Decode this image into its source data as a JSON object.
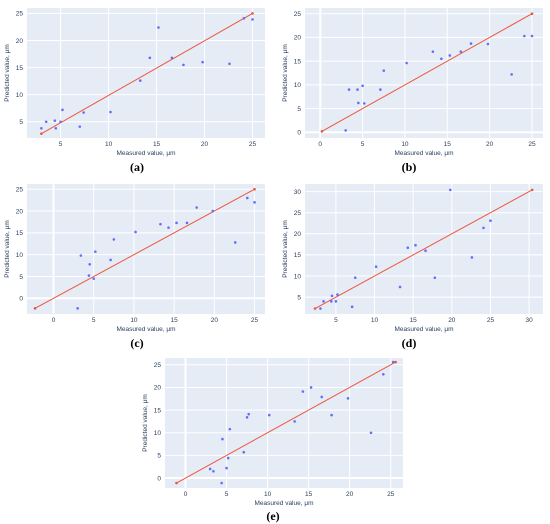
{
  "chart_data": [
    {
      "id": "a",
      "caption": "(a)",
      "type": "scatter",
      "xlabel": "Measured value, μm",
      "ylabel": "Predicted value, μm",
      "xlim": [
        1.5,
        26.3
      ],
      "ylim": [
        2.0,
        26.0
      ],
      "xticks": [
        5,
        10,
        15,
        20,
        25
      ],
      "yticks": [
        5,
        10,
        15,
        20,
        25
      ],
      "points": [
        [
          3,
          3.8
        ],
        [
          3.5,
          5.0
        ],
        [
          4.4,
          5.2
        ],
        [
          4.5,
          3.8
        ],
        [
          5.0,
          5.0
        ],
        [
          5.2,
          7.2
        ],
        [
          7.0,
          4.1
        ],
        [
          7.4,
          6.7
        ],
        [
          10.2,
          6.8
        ],
        [
          13.3,
          12.6
        ],
        [
          14.3,
          16.8
        ],
        [
          15.2,
          22.4
        ],
        [
          16.6,
          16.8
        ],
        [
          17.8,
          15.5
        ],
        [
          19.8,
          16.0
        ],
        [
          22.6,
          15.7
        ],
        [
          24.1,
          24.1
        ],
        [
          25.0,
          23.9
        ]
      ],
      "fit_line": [
        [
          3,
          2.8
        ],
        [
          25,
          25.0
        ]
      ],
      "point_color": "#636efa",
      "line_color": "#ef553b"
    },
    {
      "id": "b",
      "caption": "(b)",
      "type": "scatter",
      "xlabel": "Measured value, μm",
      "ylabel": "Predicted value, μm",
      "xlim": [
        -1.8,
        26.3
      ],
      "ylim": [
        -1.2,
        26.2
      ],
      "xticks": [
        0,
        5,
        10,
        15,
        20,
        25
      ],
      "yticks": [
        0,
        5,
        10,
        15,
        20,
        25
      ],
      "points": [
        [
          3.0,
          0.4
        ],
        [
          3.4,
          9.0
        ],
        [
          4.4,
          9.0
        ],
        [
          4.5,
          6.2
        ],
        [
          5.0,
          9.8
        ],
        [
          5.2,
          6.1
        ],
        [
          7.1,
          9.0
        ],
        [
          7.5,
          13.0
        ],
        [
          10.2,
          14.6
        ],
        [
          13.3,
          17.0
        ],
        [
          14.3,
          15.5
        ],
        [
          15.3,
          16.2
        ],
        [
          16.6,
          17.0
        ],
        [
          17.8,
          18.7
        ],
        [
          19.8,
          18.6
        ],
        [
          22.6,
          12.2
        ],
        [
          24.1,
          20.3
        ],
        [
          25.0,
          20.3
        ]
      ],
      "fit_line": [
        [
          0.2,
          0.2
        ],
        [
          25,
          25.0
        ]
      ],
      "point_color": "#636efa",
      "line_color": "#ef553b"
    },
    {
      "id": "c",
      "caption": "(c)",
      "type": "scatter",
      "xlabel": "Measured value, μm",
      "ylabel": "Predicted value, μm",
      "xlim": [
        -3.3,
        26.3
      ],
      "ylim": [
        -3.6,
        26.2
      ],
      "xticks": [
        0,
        5,
        10,
        15,
        20,
        25
      ],
      "yticks": [
        0,
        5,
        10,
        15,
        20,
        25
      ],
      "points": [
        [
          3.0,
          -2.3
        ],
        [
          3.4,
          9.8
        ],
        [
          4.4,
          5.2
        ],
        [
          4.5,
          7.8
        ],
        [
          5.0,
          4.5
        ],
        [
          5.2,
          10.7
        ],
        [
          7.1,
          8.8
        ],
        [
          7.5,
          13.5
        ],
        [
          10.2,
          15.2
        ],
        [
          13.3,
          17.0
        ],
        [
          14.3,
          16.2
        ],
        [
          15.3,
          17.3
        ],
        [
          16.6,
          17.3
        ],
        [
          17.8,
          20.8
        ],
        [
          19.8,
          20.0
        ],
        [
          22.6,
          12.8
        ],
        [
          24.1,
          23.0
        ],
        [
          25.0,
          22.0
        ]
      ],
      "fit_line": [
        [
          -2.3,
          -2.3
        ],
        [
          25,
          25.0
        ]
      ],
      "point_color": "#636efa",
      "line_color": "#ef553b"
    },
    {
      "id": "d",
      "caption": "(d)",
      "type": "scatter",
      "xlabel": "Measured value, μm",
      "ylabel": "Predicted value, μm",
      "xlim": [
        1.0,
        31.8
      ],
      "ylim": [
        1.0,
        31.8
      ],
      "xticks": [
        5,
        10,
        15,
        20,
        25,
        30
      ],
      "yticks": [
        5,
        10,
        15,
        20,
        25,
        30
      ],
      "points": [
        [
          3.0,
          2.3
        ],
        [
          3.4,
          4.0
        ],
        [
          4.4,
          4.0
        ],
        [
          4.5,
          5.3
        ],
        [
          5.0,
          4.0
        ],
        [
          5.2,
          5.6
        ],
        [
          7.1,
          2.7
        ],
        [
          7.5,
          9.6
        ],
        [
          10.2,
          12.2
        ],
        [
          13.3,
          7.4
        ],
        [
          14.3,
          16.7
        ],
        [
          15.3,
          17.3
        ],
        [
          16.6,
          16.0
        ],
        [
          17.8,
          9.6
        ],
        [
          19.8,
          30.4
        ],
        [
          22.6,
          14.4
        ],
        [
          24.1,
          21.4
        ],
        [
          25.0,
          23.1
        ]
      ],
      "fit_line": [
        [
          2.3,
          2.3
        ],
        [
          30.4,
          30.4
        ]
      ],
      "point_color": "#636efa",
      "line_color": "#ef553b"
    },
    {
      "id": "e",
      "caption": "(e)",
      "type": "scatter",
      "xlabel": "Measured value, μm",
      "ylabel": "Predicted value, μm",
      "xlim": [
        -2.5,
        26.5
      ],
      "ylim": [
        -2.2,
        26.5
      ],
      "xticks": [
        0,
        5,
        10,
        15,
        20,
        25
      ],
      "yticks": [
        0,
        5,
        10,
        15,
        20,
        25
      ],
      "points": [
        [
          3.0,
          2.0
        ],
        [
          3.4,
          1.5
        ],
        [
          4.4,
          -1.1
        ],
        [
          4.5,
          8.6
        ],
        [
          5.0,
          2.2
        ],
        [
          5.2,
          4.4
        ],
        [
          5.4,
          10.8
        ],
        [
          7.1,
          5.7
        ],
        [
          7.5,
          13.4
        ],
        [
          7.7,
          14.1
        ],
        [
          10.2,
          13.9
        ],
        [
          13.3,
          12.5
        ],
        [
          14.3,
          19.1
        ],
        [
          15.3,
          20.0
        ],
        [
          16.6,
          17.9
        ],
        [
          17.8,
          13.9
        ],
        [
          19.8,
          17.6
        ],
        [
          22.6,
          10.0
        ],
        [
          24.1,
          22.9
        ],
        [
          25.3,
          25.6
        ]
      ],
      "fit_line": [
        [
          -1.1,
          -1.1
        ],
        [
          25.6,
          25.6
        ]
      ],
      "point_color": "#636efa",
      "line_color": "#ef553b"
    }
  ]
}
